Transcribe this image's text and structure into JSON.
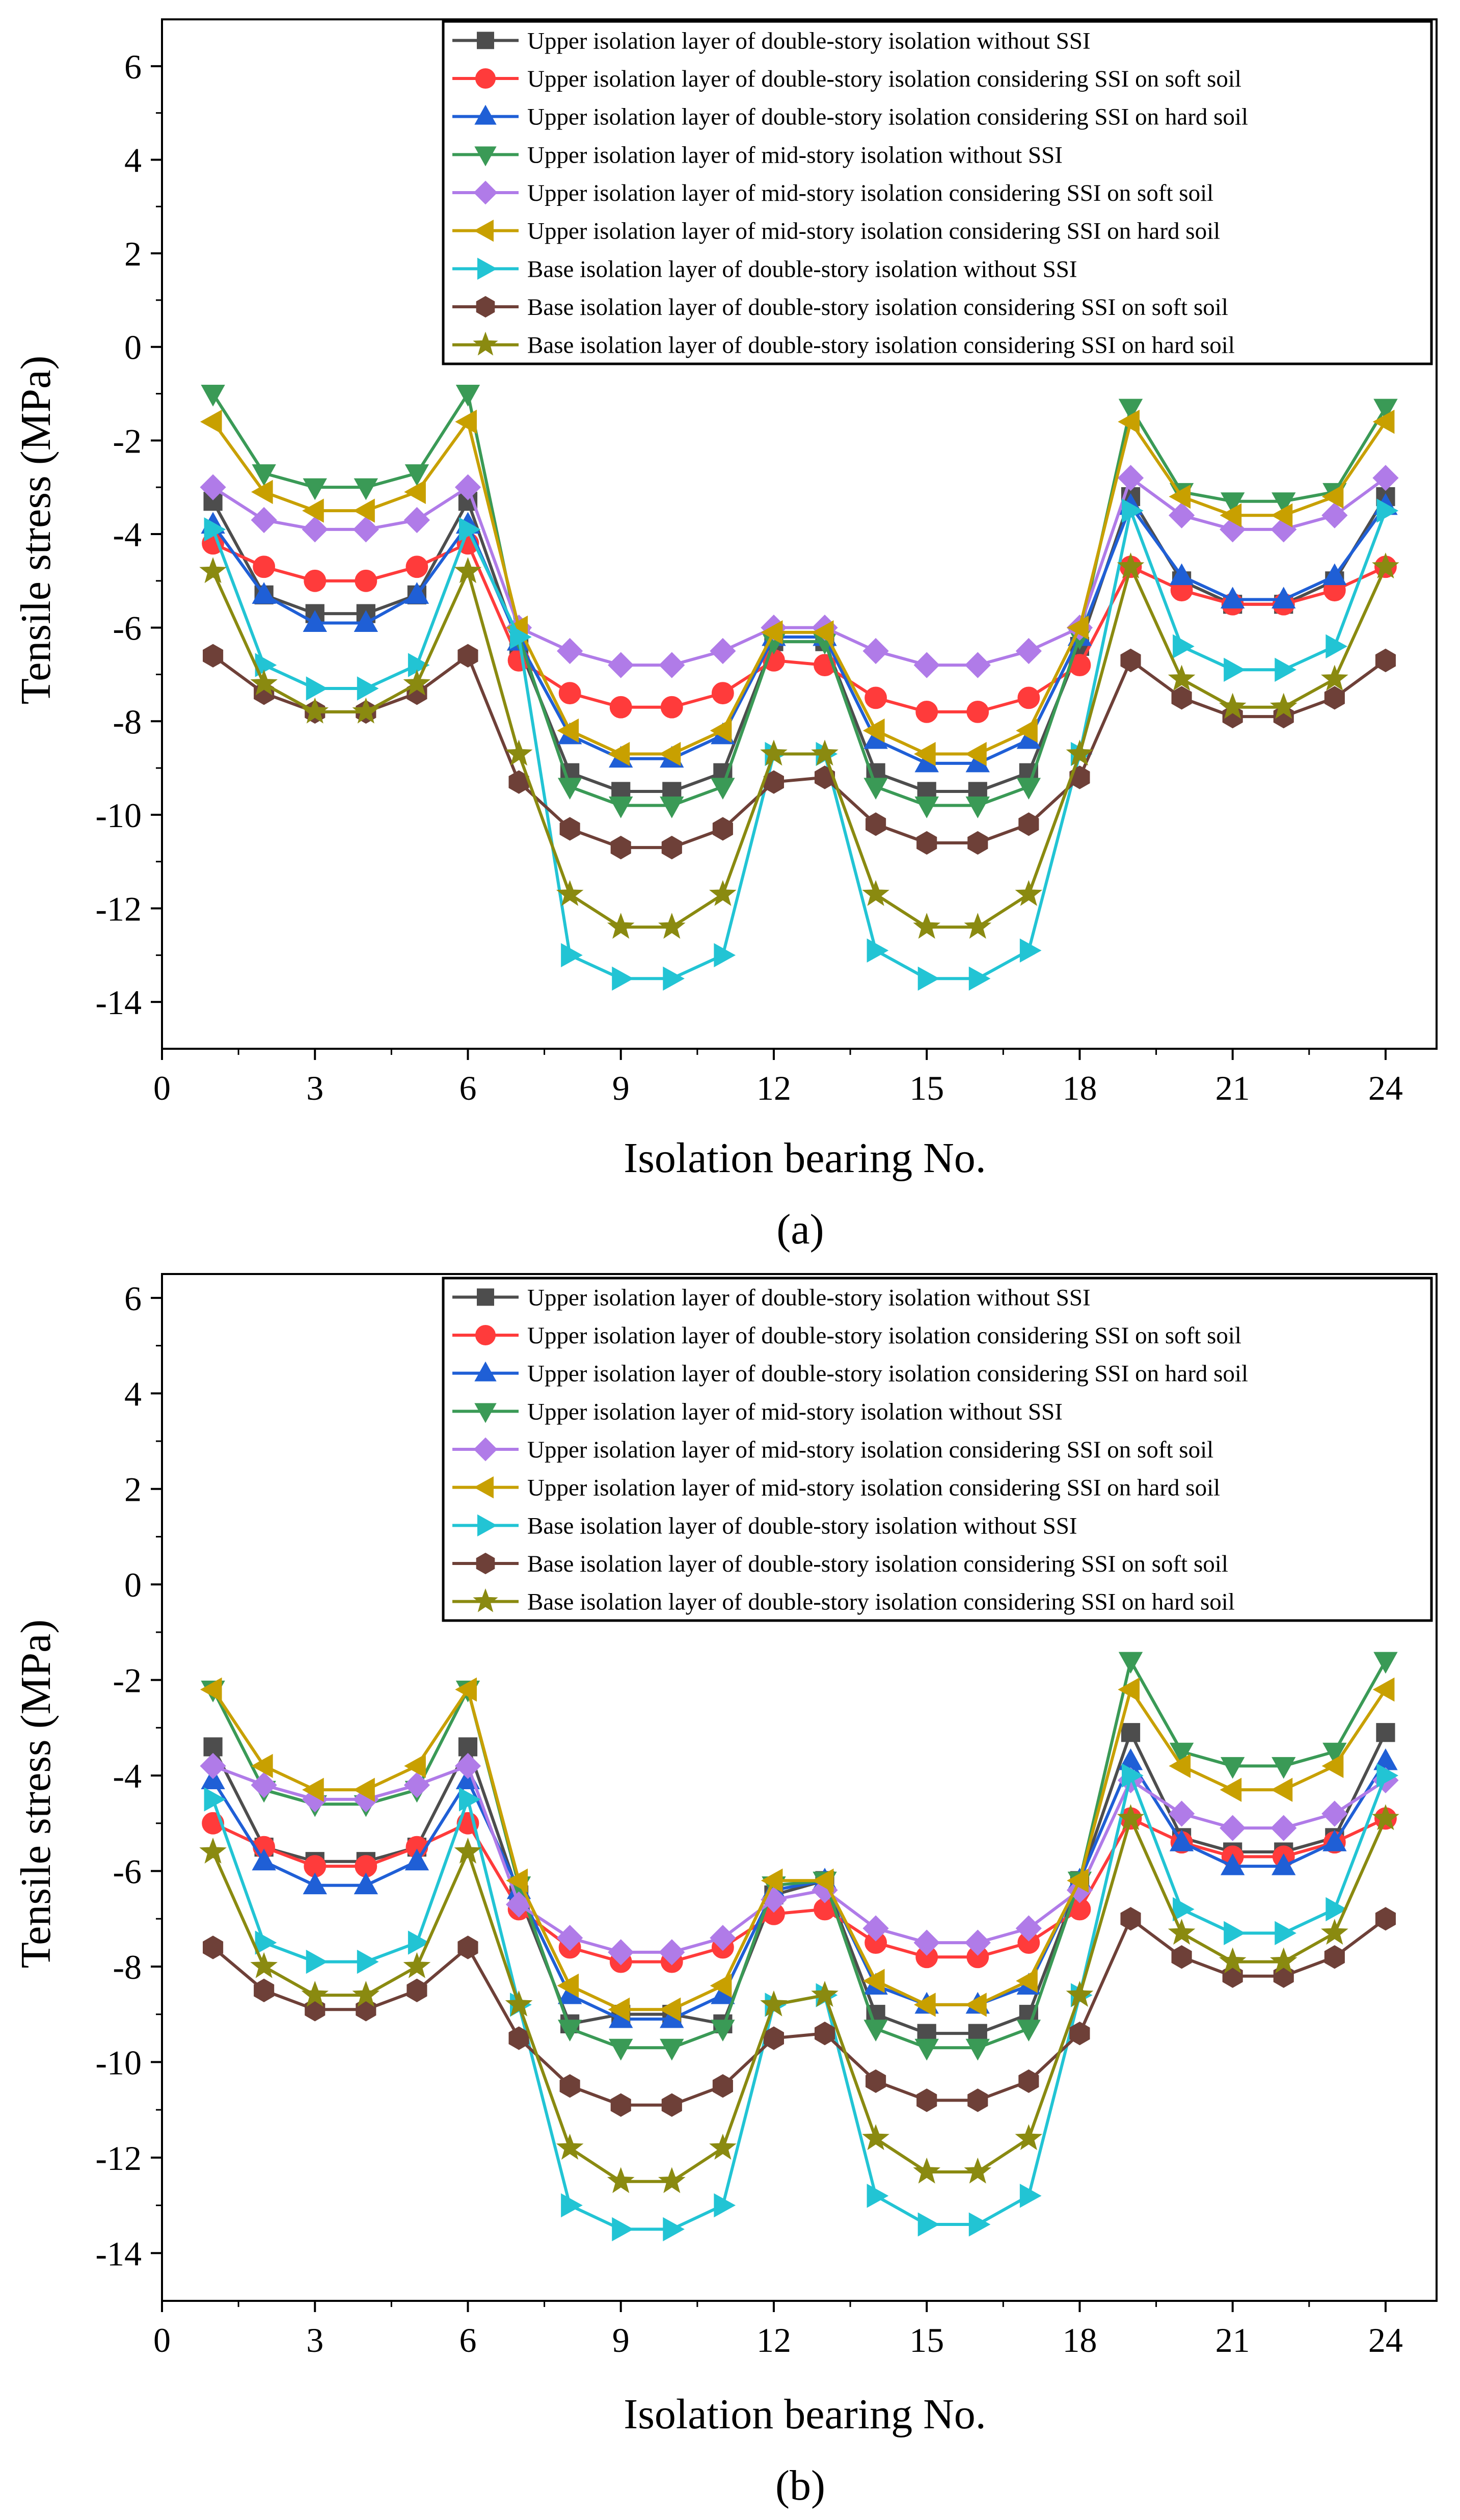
{
  "figure": {
    "panels": [
      "(a)",
      "(b)"
    ]
  },
  "chart_data": [
    {
      "type": "line",
      "panel_label": "(a)",
      "title": "",
      "xlabel": "Isolation bearing No.",
      "ylabel": "Tensile stress (MPa)",
      "xlim": [
        0,
        25
      ],
      "ylim": [
        -15,
        7
      ],
      "xticks": [
        0,
        3,
        6,
        9,
        12,
        15,
        18,
        21,
        24
      ],
      "yticks": [
        -14,
        -12,
        -10,
        -8,
        -6,
        -4,
        -2,
        0,
        2,
        4,
        6
      ],
      "grid": false,
      "legend_position": "top-right",
      "x": [
        1,
        2,
        3,
        4,
        5,
        6,
        7,
        8,
        9,
        10,
        11,
        12,
        13,
        14,
        15,
        16,
        17,
        18,
        19,
        20,
        21,
        22,
        23,
        24
      ],
      "series": [
        {
          "name": "Upper isolation layer of double-story isolation without SSI",
          "color": "#4d4d4d",
          "marker": "square",
          "values": [
            -3.3,
            -5.3,
            -5.7,
            -5.7,
            -5.3,
            -3.3,
            -6.4,
            -9.1,
            -9.5,
            -9.5,
            -9.1,
            -6.3,
            -6.3,
            -9.1,
            -9.5,
            -9.5,
            -9.1,
            -6.4,
            -3.2,
            -5.0,
            -5.5,
            -5.5,
            -5.0,
            -3.2
          ]
        },
        {
          "name": "Upper isolation layer of double-story isolation considering SSI on soft soil",
          "color": "#ff3b3b",
          "marker": "circle",
          "values": [
            -4.2,
            -4.7,
            -5.0,
            -5.0,
            -4.7,
            -4.2,
            -6.7,
            -7.4,
            -7.7,
            -7.7,
            -7.4,
            -6.7,
            -6.8,
            -7.5,
            -7.8,
            -7.8,
            -7.5,
            -6.8,
            -4.7,
            -5.2,
            -5.5,
            -5.5,
            -5.2,
            -4.7
          ]
        },
        {
          "name": "Upper isolation layer of double-story isolation considering SSI on hard soil",
          "color": "#1f5fd6",
          "marker": "triangle-up",
          "values": [
            -3.8,
            -5.3,
            -5.9,
            -5.9,
            -5.3,
            -3.8,
            -6.3,
            -8.3,
            -8.8,
            -8.8,
            -8.3,
            -6.2,
            -6.2,
            -8.4,
            -8.9,
            -8.9,
            -8.4,
            -6.2,
            -3.4,
            -4.9,
            -5.4,
            -5.4,
            -4.9,
            -3.4
          ]
        },
        {
          "name": "Upper isolation layer of mid-story isolation without SSI",
          "color": "#3a9a56",
          "marker": "triangle-down",
          "values": [
            -1.0,
            -2.7,
            -3.0,
            -3.0,
            -2.7,
            -1.0,
            -6.2,
            -9.4,
            -9.8,
            -9.8,
            -9.4,
            -6.3,
            -6.3,
            -9.4,
            -9.8,
            -9.8,
            -9.4,
            -6.2,
            -1.3,
            -3.1,
            -3.3,
            -3.3,
            -3.1,
            -1.3
          ]
        },
        {
          "name": "Upper isolation layer of mid-story isolation considering SSI on soft soil",
          "color": "#b07be8",
          "marker": "diamond",
          "values": [
            -3.0,
            -3.7,
            -3.9,
            -3.9,
            -3.7,
            -3.0,
            -6.0,
            -6.5,
            -6.8,
            -6.8,
            -6.5,
            -6.0,
            -6.0,
            -6.5,
            -6.8,
            -6.8,
            -6.5,
            -6.0,
            -2.8,
            -3.6,
            -3.9,
            -3.9,
            -3.6,
            -2.8
          ]
        },
        {
          "name": "Upper isolation layer of mid-story isolation considering SSI on hard soil",
          "color": "#c8a000",
          "marker": "triangle-left",
          "values": [
            -1.6,
            -3.1,
            -3.5,
            -3.5,
            -3.1,
            -1.6,
            -6.0,
            -8.2,
            -8.7,
            -8.7,
            -8.2,
            -6.1,
            -6.1,
            -8.2,
            -8.7,
            -8.7,
            -8.2,
            -6.0,
            -1.6,
            -3.2,
            -3.6,
            -3.6,
            -3.2,
            -1.6
          ]
        },
        {
          "name": "Base isolation layer of  double-story isolation without SSI",
          "color": "#22c4d4",
          "marker": "triangle-right",
          "values": [
            -3.9,
            -6.8,
            -7.3,
            -7.3,
            -6.8,
            -3.9,
            -6.2,
            -13.0,
            -13.5,
            -13.5,
            -13.0,
            -8.7,
            -8.7,
            -12.9,
            -13.5,
            -13.5,
            -12.9,
            -8.7,
            -3.5,
            -6.4,
            -6.9,
            -6.9,
            -6.4,
            -3.5
          ]
        },
        {
          "name": "Base isolation layer of double-story isolation considering SSI on soft soil",
          "color": "#6e4038",
          "marker": "hexagon",
          "values": [
            -6.6,
            -7.4,
            -7.8,
            -7.8,
            -7.4,
            -6.6,
            -9.3,
            -10.3,
            -10.7,
            -10.7,
            -10.3,
            -9.3,
            -9.2,
            -10.2,
            -10.6,
            -10.6,
            -10.2,
            -9.2,
            -6.7,
            -7.5,
            -7.9,
            -7.9,
            -7.5,
            -6.7
          ]
        },
        {
          "name": "Base isolation layer of double-story isolation considering SSI on hard soil",
          "color": "#8a8a10",
          "marker": "star",
          "values": [
            -4.8,
            -7.2,
            -7.8,
            -7.8,
            -7.2,
            -4.8,
            -8.7,
            -11.7,
            -12.4,
            -12.4,
            -11.7,
            -8.7,
            -8.7,
            -11.7,
            -12.4,
            -12.4,
            -11.7,
            -8.7,
            -4.7,
            -7.1,
            -7.7,
            -7.7,
            -7.1,
            -4.7
          ]
        }
      ]
    },
    {
      "type": "line",
      "panel_label": "(b)",
      "title": "",
      "xlabel": "Isolation bearing No.",
      "ylabel": "Tensile stress (MPa)",
      "xlim": [
        0,
        25
      ],
      "ylim": [
        -15,
        6.5
      ],
      "xticks": [
        0,
        3,
        6,
        9,
        12,
        15,
        18,
        21,
        24
      ],
      "yticks": [
        -14,
        -12,
        -10,
        -8,
        -6,
        -4,
        -2,
        0,
        2,
        4,
        6
      ],
      "grid": false,
      "legend_position": "top-right",
      "x": [
        1,
        2,
        3,
        4,
        5,
        6,
        7,
        8,
        9,
        10,
        11,
        12,
        13,
        14,
        15,
        16,
        17,
        18,
        19,
        20,
        21,
        22,
        23,
        24
      ],
      "series": [
        {
          "name": "Upper isolation layer of double-story isolation without SSI",
          "color": "#4d4d4d",
          "marker": "square",
          "values": [
            -3.4,
            -5.5,
            -5.8,
            -5.8,
            -5.5,
            -3.4,
            -6.5,
            -9.2,
            -9.0,
            -9.0,
            -9.2,
            -6.5,
            -6.2,
            -9.0,
            -9.4,
            -9.4,
            -9.0,
            -6.2,
            -3.1,
            -5.3,
            -5.6,
            -5.6,
            -5.3,
            -3.1
          ]
        },
        {
          "name": "Upper isolation layer of double-story isolation considering SSI on soft soil",
          "color": "#ff3b3b",
          "marker": "circle",
          "values": [
            -5.0,
            -5.5,
            -5.9,
            -5.9,
            -5.5,
            -5.0,
            -6.8,
            -7.6,
            -7.9,
            -7.9,
            -7.6,
            -6.9,
            -6.8,
            -7.5,
            -7.8,
            -7.8,
            -7.5,
            -6.8,
            -4.9,
            -5.4,
            -5.7,
            -5.7,
            -5.4,
            -4.9
          ]
        },
        {
          "name": "Upper isolation layer of double-story isolation considering SSI on hard soil",
          "color": "#1f5fd6",
          "marker": "triangle-up",
          "values": [
            -4.1,
            -5.8,
            -6.3,
            -6.3,
            -5.8,
            -4.1,
            -6.4,
            -8.6,
            -9.1,
            -9.1,
            -8.6,
            -6.4,
            -6.2,
            -8.4,
            -8.8,
            -8.8,
            -8.4,
            -6.2,
            -3.7,
            -5.4,
            -5.9,
            -5.9,
            -5.4,
            -3.7
          ]
        },
        {
          "name": "Upper isolation layer of mid-story isolation without SSI",
          "color": "#3a9a56",
          "marker": "triangle-down",
          "values": [
            -2.2,
            -4.3,
            -4.6,
            -4.6,
            -4.3,
            -2.2,
            -6.3,
            -9.3,
            -9.7,
            -9.7,
            -9.3,
            -6.3,
            -6.2,
            -9.3,
            -9.7,
            -9.7,
            -9.3,
            -6.2,
            -1.6,
            -3.5,
            -3.8,
            -3.8,
            -3.5,
            -1.6
          ]
        },
        {
          "name": "Upper isolation layer of mid-story isolation considering SSI on soft soil",
          "color": "#b07be8",
          "marker": "diamond",
          "values": [
            -3.8,
            -4.2,
            -4.5,
            -4.5,
            -4.2,
            -3.8,
            -6.7,
            -7.4,
            -7.7,
            -7.7,
            -7.4,
            -6.6,
            -6.4,
            -7.2,
            -7.5,
            -7.5,
            -7.2,
            -6.4,
            -4.1,
            -4.8,
            -5.1,
            -5.1,
            -4.8,
            -4.1
          ]
        },
        {
          "name": "Upper isolation layer of mid-story isolation considering SSI on hard soil",
          "color": "#c8a000",
          "marker": "triangle-left",
          "values": [
            -2.2,
            -3.8,
            -4.3,
            -4.3,
            -3.8,
            -2.2,
            -6.2,
            -8.4,
            -8.9,
            -8.9,
            -8.4,
            -6.2,
            -6.2,
            -8.3,
            -8.8,
            -8.8,
            -8.3,
            -6.2,
            -2.2,
            -3.8,
            -4.3,
            -4.3,
            -3.8,
            -2.2
          ]
        },
        {
          "name": "Base isolation layer of  double-story isolation without SSI",
          "color": "#22c4d4",
          "marker": "triangle-right",
          "values": [
            -4.5,
            -7.5,
            -7.9,
            -7.9,
            -7.5,
            -4.5,
            -8.8,
            -13.0,
            -13.5,
            -13.5,
            -13.0,
            -8.8,
            -8.6,
            -12.8,
            -13.4,
            -13.4,
            -12.8,
            -8.6,
            -4.0,
            -6.8,
            -7.3,
            -7.3,
            -6.8,
            -4.0
          ]
        },
        {
          "name": "Base isolation layer of double-story isolation considering SSI on soft soil",
          "color": "#6e4038",
          "marker": "hexagon",
          "values": [
            -7.6,
            -8.5,
            -8.9,
            -8.9,
            -8.5,
            -7.6,
            -9.5,
            -10.5,
            -10.9,
            -10.9,
            -10.5,
            -9.5,
            -9.4,
            -10.4,
            -10.8,
            -10.8,
            -10.4,
            -9.4,
            -7.0,
            -7.8,
            -8.2,
            -8.2,
            -7.8,
            -7.0
          ]
        },
        {
          "name": "Base isolation layer of double-story isolation considering SSI on hard soil",
          "color": "#8a8a10",
          "marker": "star",
          "values": [
            -5.6,
            -8.0,
            -8.6,
            -8.6,
            -8.0,
            -5.6,
            -8.8,
            -11.8,
            -12.5,
            -12.5,
            -11.8,
            -8.8,
            -8.6,
            -11.6,
            -12.3,
            -12.3,
            -11.6,
            -8.6,
            -4.9,
            -7.3,
            -7.9,
            -7.9,
            -7.3,
            -4.9
          ]
        }
      ]
    }
  ]
}
